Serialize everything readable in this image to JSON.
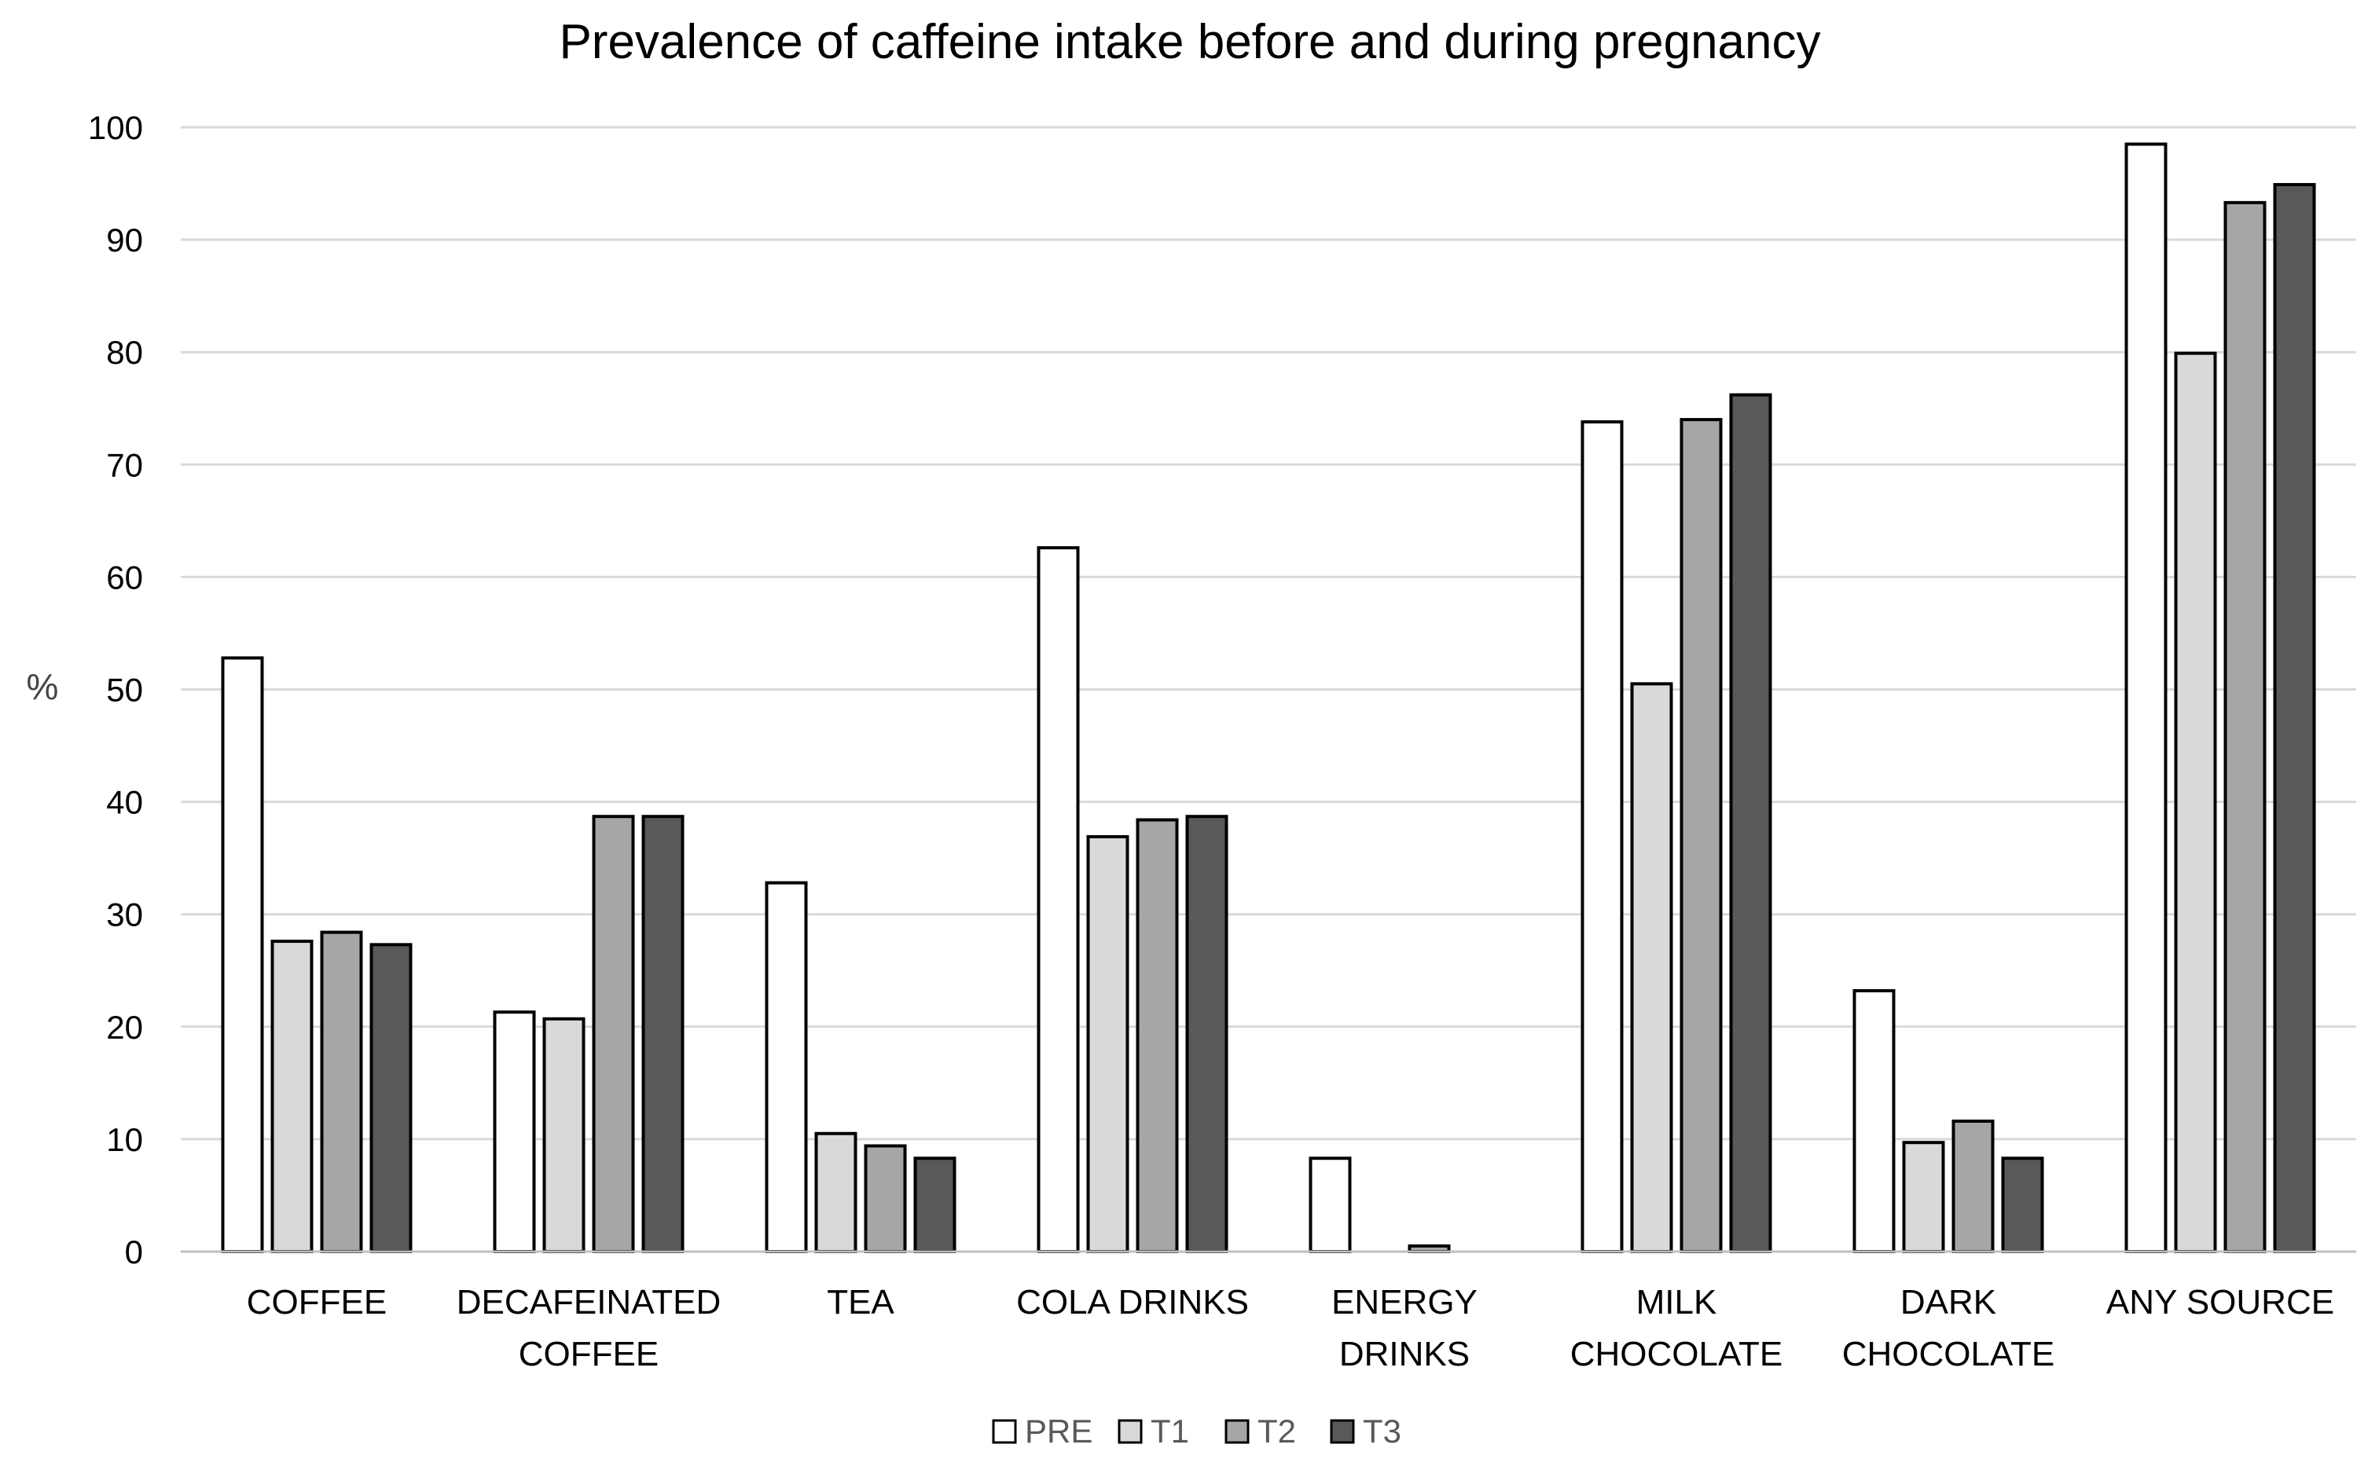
{
  "chart_data": {
    "type": "bar",
    "title": "Prevalence of caffeine intake before and during pregnancy",
    "xlabel": "",
    "ylabel": "%",
    "ylim": [
      0,
      100
    ],
    "yticks": [
      "0",
      "10",
      "20",
      "30",
      "40",
      "50",
      "60",
      "70",
      "80",
      "90",
      "100"
    ],
    "grid": true,
    "legend_position": "bottom",
    "categories": [
      [
        "COFFEE"
      ],
      [
        "DECAFEINATED",
        "COFFEE"
      ],
      [
        "TEA"
      ],
      [
        "COLA DRINKS"
      ],
      [
        "ENERGY",
        "DRINKS"
      ],
      [
        "MILK",
        "CHOCOLATE"
      ],
      [
        "DARK",
        "CHOCOLATE"
      ],
      [
        "ANY SOURCE"
      ]
    ],
    "series": [
      {
        "name": "PRE",
        "color": "#ffffff",
        "values": [
          52.8,
          21.3,
          32.8,
          62.6,
          8.3,
          73.8,
          23.2,
          98.5
        ]
      },
      {
        "name": "T1",
        "color": "#d9d9d9",
        "values": [
          27.6,
          20.7,
          10.5,
          36.9,
          0,
          50.5,
          9.7,
          79.9
        ]
      },
      {
        "name": "T2",
        "color": "#a6a6a6",
        "values": [
          28.4,
          38.7,
          9.4,
          38.4,
          0.5,
          74.0,
          11.6,
          93.3
        ]
      },
      {
        "name": "T3",
        "color": "#595959",
        "values": [
          27.3,
          38.7,
          8.3,
          38.7,
          0,
          76.2,
          8.3,
          94.9
        ]
      }
    ]
  }
}
